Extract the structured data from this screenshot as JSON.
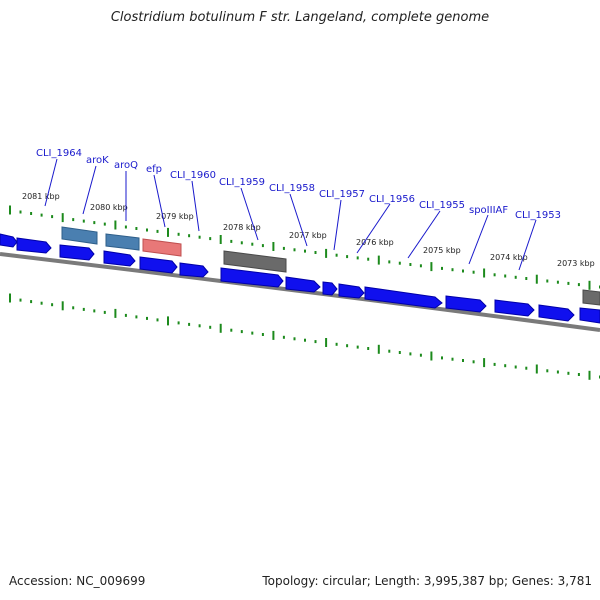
{
  "title": "Clostridium botulinum F str. Langeland, complete genome",
  "accession": "Accession: NC_009699",
  "stats": "Topology: circular; Length: 3,995,387 bp; Genes: 3,781",
  "colors": {
    "cds": "#1010ee",
    "cds_shade": "#0000a8",
    "gray": "#6a6a6a",
    "steel": "#4a7fb0",
    "pink": "#e87878",
    "tick": "#1c8a1c",
    "backbone": "#7a7a7a",
    "label": "#1a1acc"
  },
  "kbp_labels": [
    "2081 kbp",
    "2080 kbp",
    "2079 kbp",
    "2078 kbp",
    "2077 kbp",
    "2076 kbp",
    "2075 kbp",
    "2074 kbp",
    "2073 kbp"
  ],
  "gene_labels": [
    "CLI_1964",
    "aroK",
    "aroQ",
    "efp",
    "CLI_1960",
    "CLI_1959",
    "CLI_1958",
    "CLI_1957",
    "CLI_1956",
    "CLI_1955",
    "spoIIIAF",
    "CLI_1953"
  ]
}
